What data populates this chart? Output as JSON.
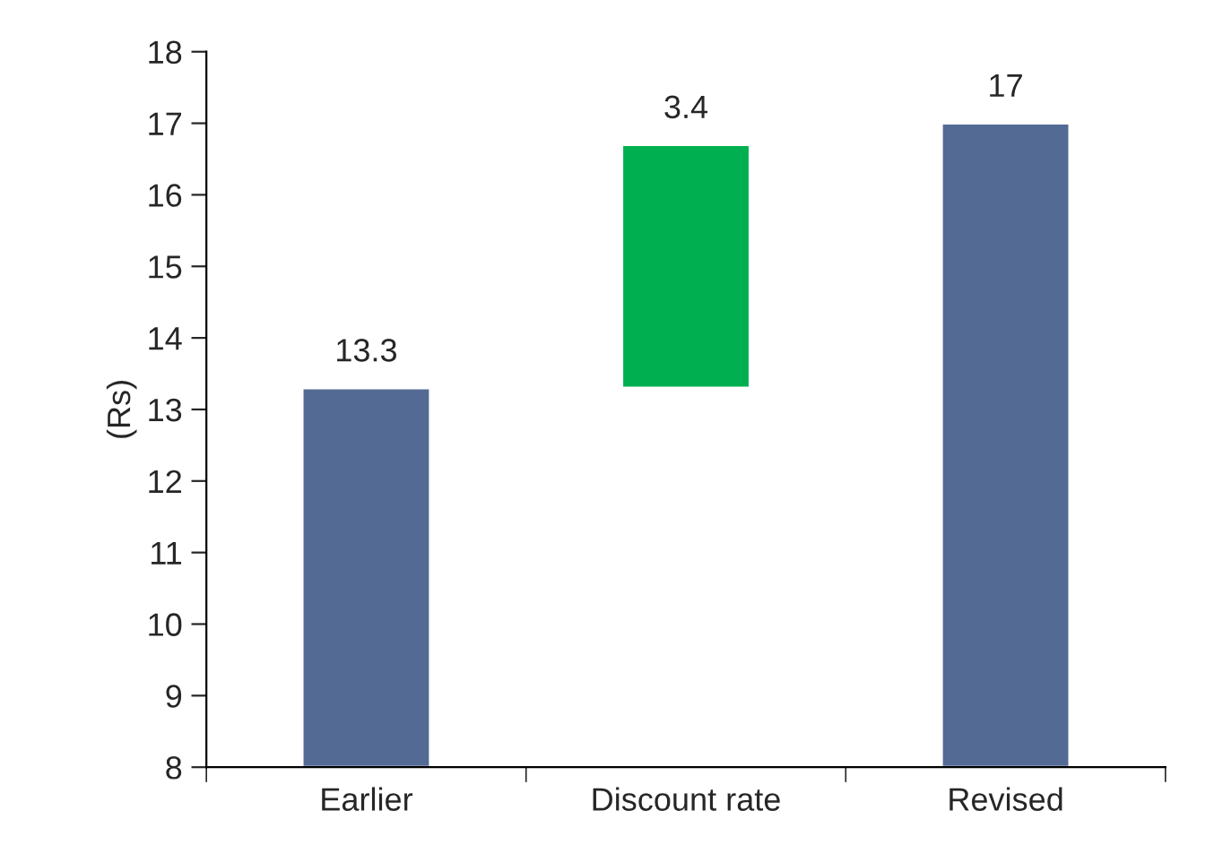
{
  "chart_data": {
    "type": "bar",
    "ylabel": "(Rs)",
    "categories": [
      "Earlier",
      "Discount rate",
      "Revised"
    ],
    "values": [
      13.3,
      3.4,
      17
    ],
    "base": [
      null,
      13.3,
      null
    ],
    "colors": [
      "#536a94",
      "#00b050",
      "#536a94"
    ],
    "ylim": [
      8,
      18
    ],
    "yticks": [
      8,
      9,
      10,
      11,
      12,
      13,
      14,
      15,
      16,
      17,
      18
    ],
    "data_labels": true,
    "grid": false,
    "legend": false
  }
}
